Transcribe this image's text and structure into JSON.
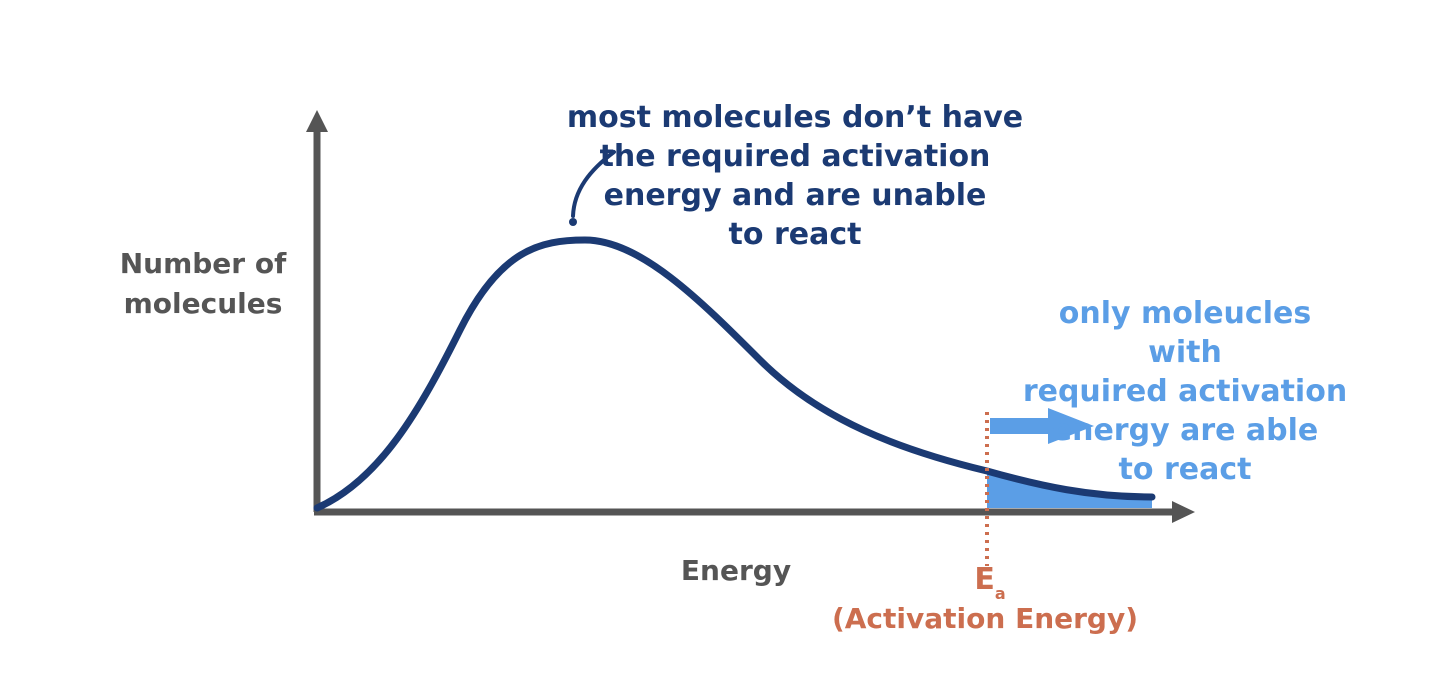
{
  "diagram": {
    "y_axis_label_line1": "Number of",
    "y_axis_label_line2": "molecules",
    "x_axis_label": "Energy",
    "note_main": {
      "line1": "most molecules don’t have",
      "line2": "the required activation",
      "line3": "energy and are unable",
      "line4": "to react"
    },
    "note_threshold": {
      "line1": "only moleucles with",
      "line2": "required activation",
      "line3": "energy are able",
      "line4": "to react"
    },
    "activation_symbol": "E",
    "activation_subscript": "a",
    "activation_caption": "(Activation Energy)"
  },
  "colors": {
    "axis": "#555555",
    "curve": "#1b3a73",
    "shaded_area": "#5b9ee6",
    "threshold_line": "#cc6e4f",
    "arrow": "#5b9ee6"
  }
}
